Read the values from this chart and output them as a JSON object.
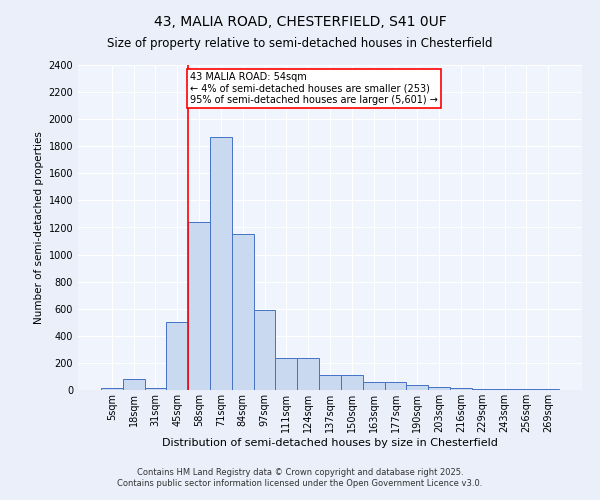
{
  "title1": "43, MALIA ROAD, CHESTERFIELD, S41 0UF",
  "title2": "Size of property relative to semi-detached houses in Chesterfield",
  "xlabel": "Distribution of semi-detached houses by size in Chesterfield",
  "ylabel": "Number of semi-detached properties",
  "footnote1": "Contains HM Land Registry data © Crown copyright and database right 2025.",
  "footnote2": "Contains public sector information licensed under the Open Government Licence v3.0.",
  "bin_labels": [
    "5sqm",
    "18sqm",
    "31sqm",
    "45sqm",
    "58sqm",
    "71sqm",
    "84sqm",
    "97sqm",
    "111sqm",
    "124sqm",
    "137sqm",
    "150sqm",
    "163sqm",
    "177sqm",
    "190sqm",
    "203sqm",
    "216sqm",
    "229sqm",
    "243sqm",
    "256sqm",
    "269sqm"
  ],
  "bar_values": [
    15,
    80,
    15,
    500,
    1240,
    1870,
    1150,
    590,
    240,
    240,
    110,
    110,
    60,
    60,
    40,
    25,
    15,
    10,
    5,
    5,
    5
  ],
  "bar_color": "#c9d9f0",
  "bar_edge_color": "#4472c4",
  "property_line_color": "red",
  "annotation_text": "43 MALIA ROAD: 54sqm\n← 4% of semi-detached houses are smaller (253)\n95% of semi-detached houses are larger (5,601) →",
  "annotation_box_color": "white",
  "annotation_box_edge_color": "red",
  "ylim": [
    0,
    2400
  ],
  "yticks": [
    0,
    200,
    400,
    600,
    800,
    1000,
    1200,
    1400,
    1600,
    1800,
    2000,
    2200,
    2400
  ],
  "bg_color": "#eaeff9",
  "plot_bg_color": "#f0f4fc",
  "title1_fontsize": 10,
  "title2_fontsize": 8.5,
  "ylabel_fontsize": 7.5,
  "xlabel_fontsize": 8,
  "tick_fontsize": 7,
  "footnote_fontsize": 6,
  "annotation_fontsize": 7
}
